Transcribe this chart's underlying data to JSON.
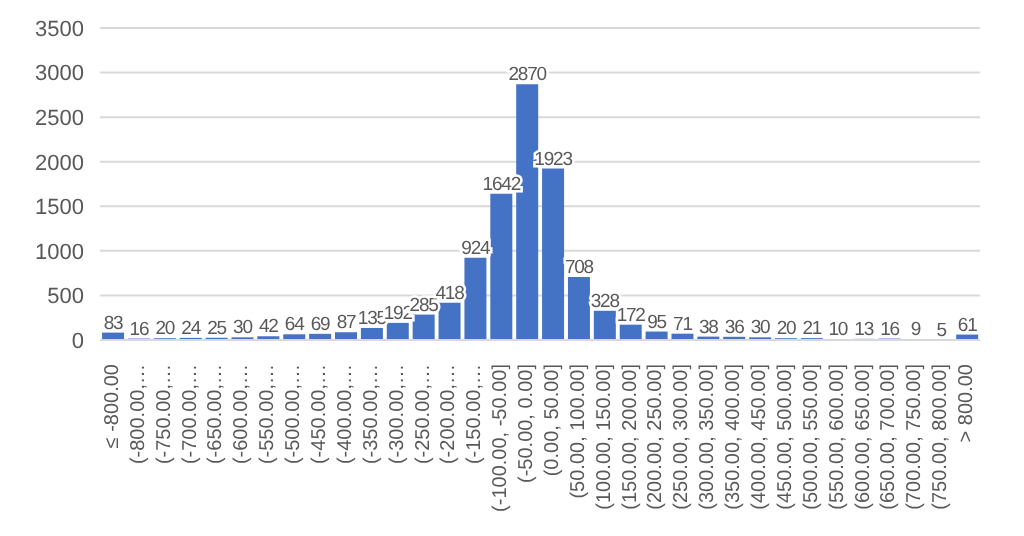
{
  "chart_data": {
    "type": "bar",
    "categories": [
      "≤ -800.00",
      "(-800.00,…",
      "(-750.00,…",
      "(-700.00,…",
      "(-650.00,…",
      "(-600.00,…",
      "(-550.00,…",
      "(-500.00,…",
      "(-450.00,…",
      "(-400.00,…",
      "(-350.00,…",
      "(-300.00,…",
      "(-250.00,…",
      "(-200.00,…",
      "(-150.00,…",
      "(-100.00, -50.00]",
      "(-50.00, 0.00]",
      "(0.00, 50.00]",
      "(50.00, 100.00]",
      "(100.00, 150.00]",
      "(150.00, 200.00]",
      "(200.00, 250.00]",
      "(250.00, 300.00]",
      "(300.00, 350.00]",
      "(350.00, 400.00]",
      "(400.00, 450.00]",
      "(450.00, 500.00]",
      "(500.00, 550.00]",
      "(550.00, 600.00]",
      "(600.00, 650.00]",
      "(650.00, 700.00]",
      "(700.00, 750.00]",
      "(750.00, 800.00]",
      "> 800.00"
    ],
    "values": [
      83,
      16,
      20,
      24,
      25,
      30,
      42,
      64,
      69,
      87,
      135,
      192,
      285,
      418,
      924,
      1642,
      2870,
      1923,
      708,
      328,
      172,
      95,
      71,
      38,
      36,
      30,
      20,
      21,
      10,
      13,
      16,
      9,
      5,
      61
    ],
    "color": "#4472c4",
    "ylim": [
      0,
      3500
    ],
    "yticks": [
      0,
      500,
      1000,
      1500,
      2000,
      2500,
      3000,
      3500
    ],
    "grid": "y",
    "data_labels": true
  }
}
